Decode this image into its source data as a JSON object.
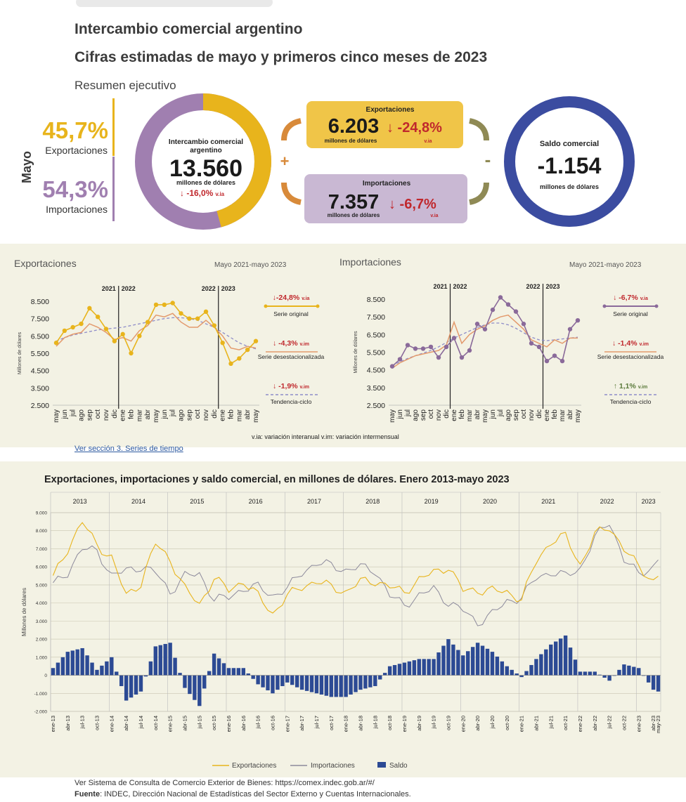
{
  "header": {
    "title": "Intercambio comercial argentino",
    "subtitle": "Cifras estimadas de mayo y primeros cinco meses de 2023",
    "section_label": "Resumen ejecutivo"
  },
  "summary": {
    "month": "Mayo",
    "exports_share": "45,7%",
    "exports_share_label": "Exportaciones",
    "imports_share": "54,3%",
    "imports_share_label": "Importaciones",
    "trade_title_1": "Intercambio comercial",
    "trade_title_2": "argentino",
    "trade_value": "13.560",
    "trade_unit": "millones de dólares",
    "trade_change": "↓ -16,0%",
    "trade_change_suffix": "v.ia",
    "plus": "+",
    "minus": "-",
    "exports_box_title": "Exportaciones",
    "exports_box_value": "6.203",
    "exports_box_change": "↓ -24,8%",
    "exports_box_unit": "millones de dólares",
    "exports_box_suffix": "v.ia",
    "imports_box_title": "Importaciones",
    "imports_box_value": "7.357",
    "imports_box_change": "↓ -6,7%",
    "imports_box_unit": "millones de dólares",
    "imports_box_suffix": "v.ia",
    "balance_title": "Saldo comercial",
    "balance_value": "-1.154",
    "balance_unit": "millones de dólares",
    "colors": {
      "exports": "#e8b41c",
      "imports": "#a07fb0",
      "balance": "#3b4ca0",
      "down": "#c0282d"
    }
  },
  "charts_section": {
    "note": "v.ia: variación interanual   v.im: variación intermensual",
    "link": "Ver sección 3. Series de tiempo",
    "footer_1": "Ver Sistema de Consulta de Comercio Exterior de Bienes: https://comex.indec.gob.ar/#/",
    "footer_2_bold": "Fuente",
    "footer_2": ": INDEC, Dirección Nacional de Estadísticas del Sector Externo y Cuentas Internacionales."
  },
  "chart_data": [
    {
      "type": "line",
      "title": "Exportaciones",
      "subtitle": "Mayo 2021-mayo 2023",
      "ylabel": "Millones de dólares",
      "ylim": [
        2500,
        9000
      ],
      "yticks": [
        "8.500",
        "7.500",
        "6.500",
        "5.500",
        "4.500",
        "3.500",
        "2.500"
      ],
      "year_labels": [
        "2021",
        "2022",
        "2022",
        "2023"
      ],
      "x": [
        "may",
        "jun",
        "jul",
        "ago",
        "sep",
        "oct",
        "nov",
        "dic",
        "ene",
        "feb",
        "mar",
        "abr",
        "may",
        "jun",
        "jul",
        "ago",
        "sep",
        "oct",
        "nov",
        "dic",
        "ene",
        "feb",
        "mar",
        "abr",
        "may"
      ],
      "series": [
        {
          "name": "Serie original",
          "change": "↓-24,8%",
          "suffix": "v.ia",
          "color": "#e8b41c",
          "values": [
            6100,
            6800,
            7000,
            7200,
            8100,
            7600,
            6900,
            6200,
            6600,
            5500,
            6500,
            7300,
            8300,
            8300,
            8400,
            7800,
            7500,
            7500,
            7900,
            7100,
            6100,
            4900,
            5200,
            5700,
            6200
          ]
        },
        {
          "name": "Serie desestacionalizada",
          "change": "↓ -4,3%",
          "suffix": "v.im",
          "color": "#e39a6d",
          "values": [
            5900,
            6400,
            6600,
            6700,
            7200,
            7000,
            6700,
            6300,
            6400,
            6200,
            6800,
            7100,
            7700,
            7600,
            7800,
            7300,
            7000,
            7000,
            7400,
            7000,
            6500,
            5800,
            5700,
            5900,
            5800
          ]
        },
        {
          "name": "Tendencia-ciclo",
          "change": "↓ -1,9%",
          "suffix": "v.im",
          "color": "#8e8cc8",
          "values": [
            6200,
            6400,
            6550,
            6650,
            6750,
            6850,
            6900,
            6950,
            7000,
            7100,
            7200,
            7300,
            7400,
            7500,
            7550,
            7550,
            7500,
            7400,
            7200,
            7000,
            6700,
            6400,
            6100,
            5900,
            5750
          ]
        }
      ]
    },
    {
      "type": "line",
      "title": "Importaciones",
      "subtitle": "Mayo 2021-mayo 2023",
      "ylabel": "Millones de dólares",
      "ylim": [
        2500,
        9000
      ],
      "yticks": [
        "8.500",
        "7.500",
        "6.500",
        "5.500",
        "4.500",
        "3.500",
        "2.500"
      ],
      "year_labels": [
        "2021",
        "2022",
        "2022",
        "2023"
      ],
      "x": [
        "may",
        "jun",
        "jul",
        "ago",
        "sep",
        "oct",
        "nov",
        "dic",
        "ene",
        "feb",
        "mar",
        "abr",
        "may",
        "jun",
        "jul",
        "ago",
        "sep",
        "oct",
        "nov",
        "dic",
        "ene",
        "feb",
        "mar",
        "abr",
        "may"
      ],
      "series": [
        {
          "name": "Serie original",
          "change": "↓  -6,7%",
          "suffix": "v.ia",
          "color": "#8a6a9a",
          "values": [
            4700,
            5100,
            5900,
            5700,
            5700,
            5800,
            5200,
            5800,
            6300,
            5200,
            5600,
            7100,
            6800,
            7900,
            8600,
            8200,
            7800,
            7100,
            6000,
            5800,
            5000,
            5300,
            5000,
            6800,
            7300
          ]
        },
        {
          "name": "Serie desestacionalizada",
          "change": "↓  -1,4%",
          "suffix": "v.im",
          "color": "#e39a6d",
          "values": [
            4600,
            4900,
            5100,
            5300,
            5400,
            5500,
            5600,
            5900,
            7200,
            6000,
            6500,
            6800,
            7000,
            7300,
            7500,
            7600,
            7200,
            6800,
            6200,
            6000,
            5800,
            6200,
            6000,
            6300,
            6300
          ]
        },
        {
          "name": "Tendencia-ciclo",
          "change": "↑  1,1%",
          "suffix": "v.im",
          "color": "#8e8cc8",
          "values": [
            4750,
            4950,
            5150,
            5300,
            5450,
            5600,
            5800,
            6050,
            6300,
            6500,
            6700,
            6900,
            7050,
            7150,
            7150,
            7050,
            6850,
            6600,
            6350,
            6200,
            6150,
            6200,
            6250,
            6300,
            6350
          ]
        }
      ]
    },
    {
      "type": "bar",
      "title": "Exportaciones, importaciones y saldo comercial, en millones de dólares. Enero 2013-mayo 2023",
      "ylabel": "Millones de dólares",
      "ylim": [
        -2000,
        9000
      ],
      "yticks": [
        "9.000",
        "8.000",
        "7.000",
        "6.000",
        "5.000",
        "4.000",
        "3.000",
        "2.000",
        "1.000",
        "0",
        "-1.000",
        "-2.000"
      ],
      "years": [
        "2013",
        "2014",
        "2015",
        "2016",
        "2017",
        "2018",
        "2019",
        "2020",
        "2021",
        "2022",
        "2023"
      ],
      "x_labels": [
        "ene-13",
        "abr-13",
        "jul-13",
        "oct-13",
        "ene-14",
        "abr-14",
        "jul-14",
        "oct-14",
        "ene-15",
        "abr-15",
        "jul-15",
        "oct-15",
        "ene-16",
        "abr-16",
        "jul-16",
        "oct-16",
        "ene-17",
        "abr-17",
        "jul-17",
        "oct-17",
        "ene-18",
        "abr-18",
        "jul-18",
        "oct-18",
        "ene-19",
        "abr-19",
        "jul-19",
        "oct-19",
        "ene-20",
        "abr-20",
        "jul-20",
        "oct-20",
        "ene-21",
        "abr-21",
        "jul-21",
        "oct-21",
        "ene-22",
        "abr-22",
        "jul-22",
        "oct-22",
        "ene-23",
        "abr-23",
        "may-23"
      ],
      "legend": [
        "Exportaciones",
        "Importaciones",
        "Saldo"
      ],
      "quarterly_anchors": {
        "exportaciones": [
          5400,
          7000,
          8500,
          7200,
          6500,
          4400,
          5100,
          7300,
          6400,
          4800,
          3900,
          5400,
          4700,
          5200,
          4400,
          3400,
          4400,
          4900,
          5200,
          4900,
          4600,
          5200,
          5200,
          4900,
          4600,
          5300,
          5700,
          6000,
          4700,
          4700,
          4700,
          4600,
          4200,
          6300,
          7400,
          7700,
          6100,
          7800,
          8200,
          7000,
          6000,
          5200,
          6200
        ],
        "importaciones": [
          5000,
          5700,
          7000,
          6900,
          5500,
          5800,
          6000,
          5700,
          4600,
          5500,
          5600,
          4200,
          4300,
          4800,
          4900,
          4400,
          4800,
          5700,
          6200,
          6100,
          5800,
          6000,
          5800,
          4400,
          3900,
          4400,
          4800,
          4000,
          3600,
          2900,
          3400,
          4100,
          4300,
          5400,
          5700,
          5500,
          5900,
          7600,
          8500,
          6400,
          5600,
          6000,
          7300
        ]
      }
    }
  ]
}
